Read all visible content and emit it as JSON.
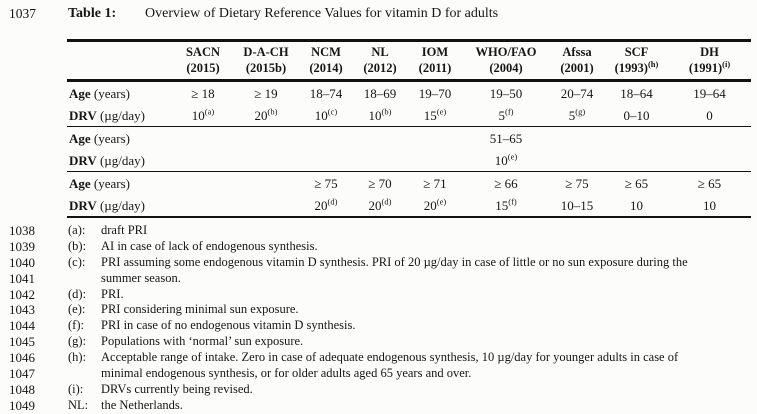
{
  "page": {
    "background": "#fcfcfa",
    "text_color": "#161616"
  },
  "title": {
    "line_number": "1037",
    "label": "Table 1:",
    "text": "Overview of Dietary Reference Values for vitamin D for adults"
  },
  "table": {
    "columns": [
      {
        "name": "SACN",
        "year": "(2015)",
        "sup": ""
      },
      {
        "name": "D-A-CH",
        "year": "(2015b)",
        "sup": ""
      },
      {
        "name": "NCM",
        "year": "(2014)",
        "sup": ""
      },
      {
        "name": "NL",
        "year": "(2012)",
        "sup": ""
      },
      {
        "name": "IOM",
        "year": "(2011)",
        "sup": ""
      },
      {
        "name": "WHO/FAO",
        "year": "(2004)",
        "sup": ""
      },
      {
        "name": "Afssa",
        "year": "(2001)",
        "sup": ""
      },
      {
        "name": "SCF",
        "year": "(1993)",
        "sup": "(h)"
      },
      {
        "name": "DH",
        "year": "(1991)",
        "sup": "(i)"
      }
    ],
    "row_labels": {
      "age": {
        "bold": "Age",
        "rest": "(years)"
      },
      "drv": {
        "bold": "DRV",
        "rest": "(µg/day)"
      }
    },
    "sections": [
      {
        "age": [
          "≥ 18",
          "≥ 19",
          "18–74",
          "18–69",
          "19–70",
          "19–50",
          "20–74",
          "18–64",
          "19–64"
        ],
        "drv": [
          {
            "text": "10",
            "sup": "(a)"
          },
          {
            "text": "20",
            "sup": "(b)"
          },
          {
            "text": "10",
            "sup": "(c)"
          },
          {
            "text": "10",
            "sup": "(b)"
          },
          {
            "text": "15",
            "sup": "(e)"
          },
          {
            "text": "5",
            "sup": "(f)"
          },
          {
            "text": "5",
            "sup": "(g)"
          },
          {
            "text": "0–10",
            "sup": ""
          },
          {
            "text": "0",
            "sup": ""
          }
        ]
      },
      {
        "age": [
          "",
          "",
          "",
          "",
          "",
          "51–65",
          "",
          "",
          ""
        ],
        "drv": [
          {
            "text": "",
            "sup": ""
          },
          {
            "text": "",
            "sup": ""
          },
          {
            "text": "",
            "sup": ""
          },
          {
            "text": "",
            "sup": ""
          },
          {
            "text": "",
            "sup": ""
          },
          {
            "text": "10",
            "sup": "(e)"
          },
          {
            "text": "",
            "sup": ""
          },
          {
            "text": "",
            "sup": ""
          },
          {
            "text": "",
            "sup": ""
          }
        ]
      },
      {
        "age": [
          "",
          "",
          "≥ 75",
          "≥ 70",
          "≥ 71",
          "≥ 66",
          "≥ 75",
          "≥ 65",
          "≥ 65"
        ],
        "drv": [
          {
            "text": "",
            "sup": ""
          },
          {
            "text": "",
            "sup": ""
          },
          {
            "text": "20",
            "sup": "(d)"
          },
          {
            "text": "20",
            "sup": "(d)"
          },
          {
            "text": "20",
            "sup": "(e)"
          },
          {
            "text": "15",
            "sup": "(f)"
          },
          {
            "text": "10–15",
            "sup": ""
          },
          {
            "text": "10",
            "sup": ""
          },
          {
            "text": "10",
            "sup": ""
          }
        ]
      }
    ]
  },
  "footnotes": [
    {
      "num": "1038",
      "label": "(a):",
      "text": "draft PRI"
    },
    {
      "num": "1039",
      "label": "(b):",
      "text": "AI in case of lack of endogenous synthesis."
    },
    {
      "num": "1040",
      "label": "(c):",
      "text": "PRI assuming some endogenous vitamin D synthesis. PRI of 20 µg/day in case of little or no sun exposure during the"
    },
    {
      "num": "1041",
      "label": "",
      "text": "summer season."
    },
    {
      "num": "1042",
      "label": "(d):",
      "text": "PRI."
    },
    {
      "num": "1043",
      "label": "(e):",
      "text": "PRI considering minimal sun exposure."
    },
    {
      "num": "1044",
      "label": "(f):",
      "text": "PRI in case of no endogenous vitamin D synthesis."
    },
    {
      "num": "1045",
      "label": "(g):",
      "text": "Populations with ‘normal’ sun exposure."
    },
    {
      "num": "1046",
      "label": "(h):",
      "text": "Acceptable range of intake. Zero in case of adequate endogenous synthesis, 10 µg/day for younger adults in case of"
    },
    {
      "num": "1047",
      "label": "",
      "text": "minimal endogenous synthesis, or for older adults aged 65 years and over."
    },
    {
      "num": "1048",
      "label": "(i):",
      "text": "DRVs currently being revised."
    },
    {
      "num": "1049",
      "label": "NL:",
      "text": "the Netherlands."
    }
  ]
}
